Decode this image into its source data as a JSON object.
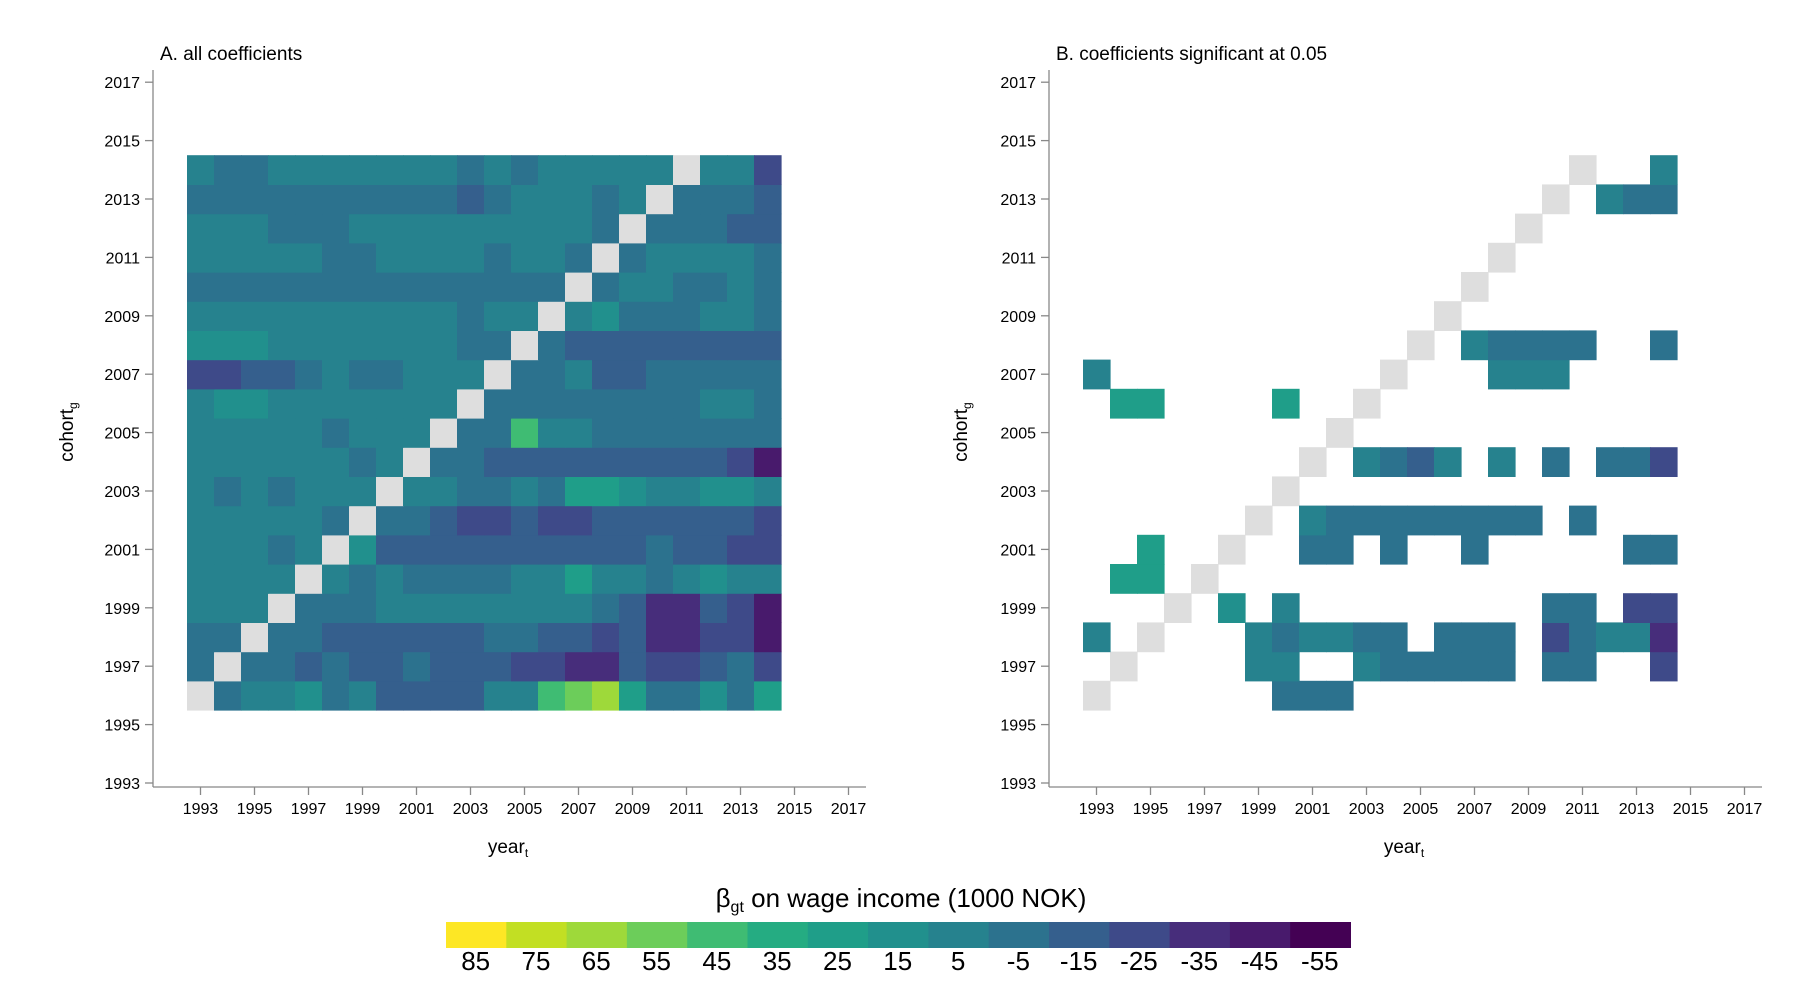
{
  "chart_data": [
    {
      "type": "heatmap",
      "title": "A. all coefficients",
      "xlabel": "year",
      "xlabel_sub": "t",
      "ylabel": "cohort",
      "ylabel_sub": "g",
      "x_ticks": [
        "1993",
        "1995",
        "1997",
        "1999",
        "2001",
        "2003",
        "2005",
        "2007",
        "2009",
        "2011",
        "2013",
        "2015",
        "2017"
      ],
      "y_ticks": [
        "1993",
        "1995",
        "1997",
        "1999",
        "2001",
        "2003",
        "2005",
        "2007",
        "2009",
        "2011",
        "2013",
        "2015",
        "2017"
      ],
      "xlim": [
        1992,
        2017
      ],
      "ylim": [
        1993,
        2017
      ],
      "grid": false,
      "x_years": [
        1993,
        1994,
        1995,
        1996,
        1997,
        1998,
        1999,
        2000,
        2001,
        2002,
        2003,
        2004,
        2005,
        2006,
        2007,
        2008,
        2009,
        2010,
        2011,
        2012,
        2013,
        2014
      ],
      "y_cohorts": [
        1996,
        1997,
        1998,
        1999,
        2000,
        2001,
        2002,
        2003,
        2004,
        2005,
        2006,
        2007,
        2008,
        2009,
        2010,
        2011,
        2012,
        2013,
        2014
      ],
      "reference_color": "#dedede",
      "values": [
        [
          null,
          -5,
          10,
          5,
          15,
          -5,
          5,
          -10,
          -10,
          -10,
          -10,
          5,
          5,
          50,
          60,
          70,
          25,
          0,
          0,
          15,
          0,
          30
        ],
        [
          -5,
          null,
          -5,
          -5,
          -10,
          -5,
          -15,
          -15,
          0,
          -10,
          -10,
          -10,
          -25,
          -25,
          -30,
          -30,
          -15,
          -25,
          -25,
          -10,
          -5,
          -25
        ],
        [
          -5,
          -5,
          null,
          -5,
          -5,
          -10,
          -15,
          -10,
          -10,
          -10,
          -10,
          -5,
          -5,
          -10,
          -15,
          -25,
          -10,
          -30,
          -30,
          -20,
          -25,
          -40
        ],
        [
          5,
          5,
          5,
          null,
          0,
          0,
          0,
          5,
          5,
          5,
          10,
          5,
          5,
          5,
          5,
          -5,
          -10,
          -30,
          -30,
          -15,
          -25,
          -40
        ],
        [
          5,
          10,
          10,
          5,
          null,
          10,
          0,
          5,
          0,
          0,
          0,
          0,
          10,
          10,
          30,
          10,
          10,
          0,
          10,
          15,
          5,
          5
        ],
        [
          5,
          10,
          10,
          0,
          5,
          null,
          15,
          -10,
          -10,
          -10,
          -10,
          -10,
          -10,
          -10,
          -15,
          -15,
          -15,
          -5,
          -15,
          -15,
          -25,
          -25
        ],
        [
          5,
          5,
          10,
          5,
          10,
          -5,
          null,
          0,
          0,
          -10,
          -25,
          -25,
          -10,
          -25,
          -20,
          -10,
          -10,
          -10,
          -15,
          -15,
          -15,
          -20
        ],
        [
          5,
          -5,
          10,
          0,
          10,
          5,
          5,
          null,
          5,
          5,
          0,
          0,
          10,
          0,
          25,
          30,
          20,
          5,
          5,
          15,
          15,
          10
        ],
        [
          5,
          5,
          5,
          5,
          5,
          5,
          0,
          5,
          null,
          0,
          0,
          -10,
          -10,
          -10,
          -10,
          -10,
          -10,
          -10,
          -10,
          -15,
          -25,
          -40
        ],
        [
          10,
          5,
          10,
          5,
          5,
          0,
          5,
          10,
          5,
          null,
          -5,
          -5,
          50,
          5,
          5,
          0,
          0,
          0,
          0,
          0,
          0,
          -5
        ],
        [
          10,
          20,
          20,
          10,
          10,
          10,
          10,
          10,
          10,
          10,
          null,
          0,
          0,
          0,
          0,
          0,
          -5,
          -5,
          -5,
          5,
          5,
          -5
        ],
        [
          -20,
          -20,
          -10,
          -10,
          -5,
          5,
          -5,
          -5,
          5,
          5,
          5,
          null,
          -5,
          -5,
          10,
          -10,
          -10,
          0,
          0,
          0,
          0,
          0
        ],
        [
          20,
          20,
          20,
          10,
          10,
          10,
          10,
          10,
          10,
          10,
          -5,
          -5,
          null,
          -5,
          -15,
          -15,
          -15,
          -15,
          -15,
          -15,
          -15,
          -15
        ],
        [
          10,
          10,
          10,
          10,
          10,
          10,
          10,
          10,
          10,
          10,
          0,
          10,
          10,
          null,
          5,
          20,
          0,
          0,
          0,
          10,
          10,
          0
        ],
        [
          -5,
          -5,
          -5,
          -5,
          -5,
          -5,
          -5,
          -5,
          -5,
          -5,
          -5,
          -5,
          -5,
          -5,
          null,
          0,
          5,
          5,
          -5,
          -5,
          5,
          0
        ],
        [
          10,
          10,
          10,
          10,
          10,
          0,
          0,
          5,
          5,
          5,
          5,
          0,
          5,
          5,
          0,
          null,
          0,
          5,
          10,
          10,
          10,
          0
        ],
        [
          5,
          5,
          5,
          0,
          0,
          0,
          5,
          5,
          5,
          5,
          5,
          5,
          5,
          5,
          5,
          0,
          null,
          -5,
          -5,
          -5,
          -10,
          -15
        ],
        [
          -5,
          -5,
          -5,
          -5,
          -5,
          -5,
          -5,
          -5,
          -5,
          -5,
          -15,
          -5,
          5,
          5,
          5,
          0,
          5,
          null,
          -5,
          -5,
          -5,
          -15
        ],
        [
          10,
          0,
          0,
          5,
          5,
          5,
          5,
          5,
          5,
          5,
          0,
          5,
          0,
          5,
          5,
          5,
          5,
          5,
          null,
          10,
          10,
          -20
        ]
      ]
    },
    {
      "type": "heatmap",
      "title": "B. coefficients significant at 0.05",
      "xlabel": "year",
      "xlabel_sub": "t",
      "ylabel": "cohort",
      "ylabel_sub": "g",
      "x_ticks": [
        "1993",
        "1995",
        "1997",
        "1999",
        "2001",
        "2003",
        "2005",
        "2007",
        "2009",
        "2011",
        "2013",
        "2015",
        "2017"
      ],
      "y_ticks": [
        "1993",
        "1995",
        "1997",
        "1999",
        "2001",
        "2003",
        "2005",
        "2007",
        "2009",
        "2011",
        "2013",
        "2015",
        "2017"
      ],
      "xlim": [
        1992,
        2017
      ],
      "ylim": [
        1993,
        2017
      ],
      "grid": false,
      "reference_cells": [
        [
          1993,
          1996
        ],
        [
          1994,
          1997
        ],
        [
          1995,
          1998
        ],
        [
          1996,
          1999
        ],
        [
          1997,
          2000
        ],
        [
          1998,
          2001
        ],
        [
          1999,
          2002
        ],
        [
          2000,
          2003
        ],
        [
          2001,
          2004
        ],
        [
          2002,
          2005
        ],
        [
          2003,
          2006
        ],
        [
          2004,
          2007
        ],
        [
          2005,
          2008
        ],
        [
          2006,
          2009
        ],
        [
          2007,
          2010
        ],
        [
          2008,
          2011
        ],
        [
          2009,
          2012
        ],
        [
          2010,
          2013
        ],
        [
          2011,
          2014
        ]
      ],
      "reference_color": "#dedede",
      "cells": [
        [
          2000,
          1996,
          0
        ],
        [
          2001,
          1996,
          0
        ],
        [
          2002,
          1996,
          0
        ],
        [
          1999,
          1997,
          10
        ],
        [
          2000,
          1997,
          10
        ],
        [
          2003,
          1997,
          5
        ],
        [
          2004,
          1997,
          -5
        ],
        [
          2005,
          1997,
          -5
        ],
        [
          2006,
          1997,
          -5
        ],
        [
          2007,
          1997,
          -5
        ],
        [
          2008,
          1997,
          -5
        ],
        [
          2010,
          1997,
          -5
        ],
        [
          2011,
          1997,
          -5
        ],
        [
          2014,
          1997,
          -20
        ],
        [
          1993,
          1998,
          10
        ],
        [
          1999,
          1998,
          10
        ],
        [
          2000,
          1998,
          -5
        ],
        [
          2001,
          1998,
          10
        ],
        [
          2002,
          1998,
          10
        ],
        [
          2003,
          1998,
          -5
        ],
        [
          2004,
          1998,
          -5
        ],
        [
          2006,
          1998,
          -5
        ],
        [
          2007,
          1998,
          -5
        ],
        [
          2008,
          1998,
          -5
        ],
        [
          2010,
          1998,
          -20
        ],
        [
          2011,
          1998,
          -5
        ],
        [
          2012,
          1998,
          5
        ],
        [
          2013,
          1998,
          5
        ],
        [
          2014,
          1998,
          -30
        ],
        [
          1998,
          1999,
          15
        ],
        [
          2000,
          1999,
          10
        ],
        [
          2010,
          1999,
          -5
        ],
        [
          2011,
          1999,
          -5
        ],
        [
          2013,
          1999,
          -20
        ],
        [
          2014,
          1999,
          -20
        ],
        [
          1994,
          2000,
          25
        ],
        [
          1995,
          2000,
          25
        ],
        [
          1995,
          2001,
          25
        ],
        [
          2001,
          2001,
          -5
        ],
        [
          2002,
          2001,
          -5
        ],
        [
          2004,
          2001,
          -5
        ],
        [
          2007,
          2001,
          -5
        ],
        [
          2013,
          2001,
          -5
        ],
        [
          2014,
          2001,
          -5
        ],
        [
          2001,
          2002,
          5
        ],
        [
          2002,
          2002,
          -5
        ],
        [
          2003,
          2002,
          -5
        ],
        [
          2004,
          2002,
          -5
        ],
        [
          2005,
          2002,
          -5
        ],
        [
          2006,
          2002,
          -5
        ],
        [
          2007,
          2002,
          -5
        ],
        [
          2008,
          2002,
          -5
        ],
        [
          2009,
          2002,
          -5
        ],
        [
          2011,
          2002,
          -5
        ],
        [
          2003,
          2004,
          5
        ],
        [
          2004,
          2004,
          -5
        ],
        [
          2005,
          2004,
          -10
        ],
        [
          2006,
          2004,
          5
        ],
        [
          2008,
          2004,
          5
        ],
        [
          2010,
          2004,
          -5
        ],
        [
          2012,
          2004,
          -5
        ],
        [
          2013,
          2004,
          -5
        ],
        [
          2014,
          2004,
          -20
        ],
        [
          1994,
          2006,
          25
        ],
        [
          1995,
          2006,
          25
        ],
        [
          2000,
          2006,
          25
        ],
        [
          1993,
          2007,
          5
        ],
        [
          2008,
          2007,
          10
        ],
        [
          2009,
          2007,
          10
        ],
        [
          2010,
          2007,
          5
        ],
        [
          2007,
          2008,
          5
        ],
        [
          2008,
          2008,
          -5
        ],
        [
          2009,
          2008,
          -5
        ],
        [
          2010,
          2008,
          -5
        ],
        [
          2011,
          2008,
          -5
        ],
        [
          2014,
          2008,
          -5
        ],
        [
          2012,
          2013,
          10
        ],
        [
          2013,
          2013,
          -5
        ],
        [
          2014,
          2013,
          -5
        ],
        [
          2014,
          2014,
          10
        ]
      ]
    }
  ],
  "legend": {
    "title": "β",
    "title_sub": "gt",
    "title_rest": " on wage income (1000 NOK)",
    "labels": [
      "85",
      "75",
      "65",
      "55",
      "45",
      "35",
      "25",
      "15",
      "5",
      "-5",
      "-15",
      "-25",
      "-35",
      "-45",
      "-55"
    ],
    "colors": [
      "#fde725",
      "#c2df23",
      "#9ed93a",
      "#6ccd5a",
      "#3fbc73",
      "#25ac82",
      "#1f9e89",
      "#21908d",
      "#26828e",
      "#2c728e",
      "#355f8d",
      "#3e4a89",
      "#472d7b",
      "#481a6c",
      "#440154"
    ]
  }
}
